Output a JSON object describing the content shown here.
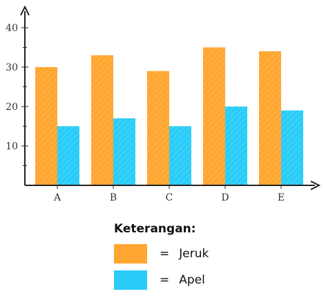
{
  "chart_data": {
    "type": "bar",
    "categories": [
      "A",
      "B",
      "C",
      "D",
      "E"
    ],
    "series": [
      {
        "name": "Jeruk",
        "values": [
          30,
          33,
          29,
          35,
          34
        ],
        "color": "#FFA630"
      },
      {
        "name": "Apel",
        "values": [
          15,
          17,
          15,
          20,
          19
        ],
        "color": "#29CCF8"
      }
    ],
    "ylim": [
      0,
      40
    ],
    "yticks": [
      10,
      20,
      30,
      40
    ],
    "grid": false,
    "legend_position": "bottom-center"
  },
  "legend": {
    "title": "Keterangan:",
    "equals": "=",
    "items": [
      {
        "label": "Jeruk",
        "color": "#FFA630"
      },
      {
        "label": "Apel",
        "color": "#29CCF8"
      }
    ]
  }
}
